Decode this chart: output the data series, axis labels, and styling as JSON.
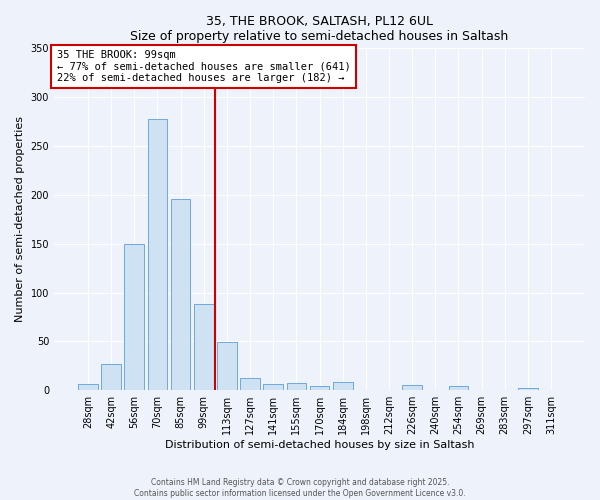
{
  "title1": "35, THE BROOK, SALTASH, PL12 6UL",
  "title2": "Size of property relative to semi-detached houses in Saltash",
  "xlabel": "Distribution of semi-detached houses by size in Saltash",
  "ylabel": "Number of semi-detached properties",
  "bar_labels": [
    "28sqm",
    "42sqm",
    "56sqm",
    "70sqm",
    "85sqm",
    "99sqm",
    "113sqm",
    "127sqm",
    "141sqm",
    "155sqm",
    "170sqm",
    "184sqm",
    "198sqm",
    "212sqm",
    "226sqm",
    "240sqm",
    "254sqm",
    "269sqm",
    "283sqm",
    "297sqm",
    "311sqm"
  ],
  "bar_values": [
    6,
    27,
    150,
    278,
    196,
    88,
    49,
    13,
    6,
    7,
    4,
    8,
    0,
    0,
    5,
    0,
    4,
    0,
    0,
    2,
    0
  ],
  "bar_color": "#cfe2f3",
  "bar_edge_color": "#6fa8dc",
  "vline_color": "#cc0000",
  "annotation_title": "35 THE BROOK: 99sqm",
  "annotation_line1": "← 77% of semi-detached houses are smaller (641)",
  "annotation_line2": "22% of semi-detached houses are larger (182) →",
  "ylim": [
    0,
    350
  ],
  "yticks": [
    0,
    50,
    100,
    150,
    200,
    250,
    300,
    350
  ],
  "background_color": "#eef2fa",
  "plot_bg_color": "#eef2fa",
  "grid_color": "#ffffff",
  "footer1": "Contains HM Land Registry data © Crown copyright and database right 2025.",
  "footer2": "Contains public sector information licensed under the Open Government Licence v3.0."
}
